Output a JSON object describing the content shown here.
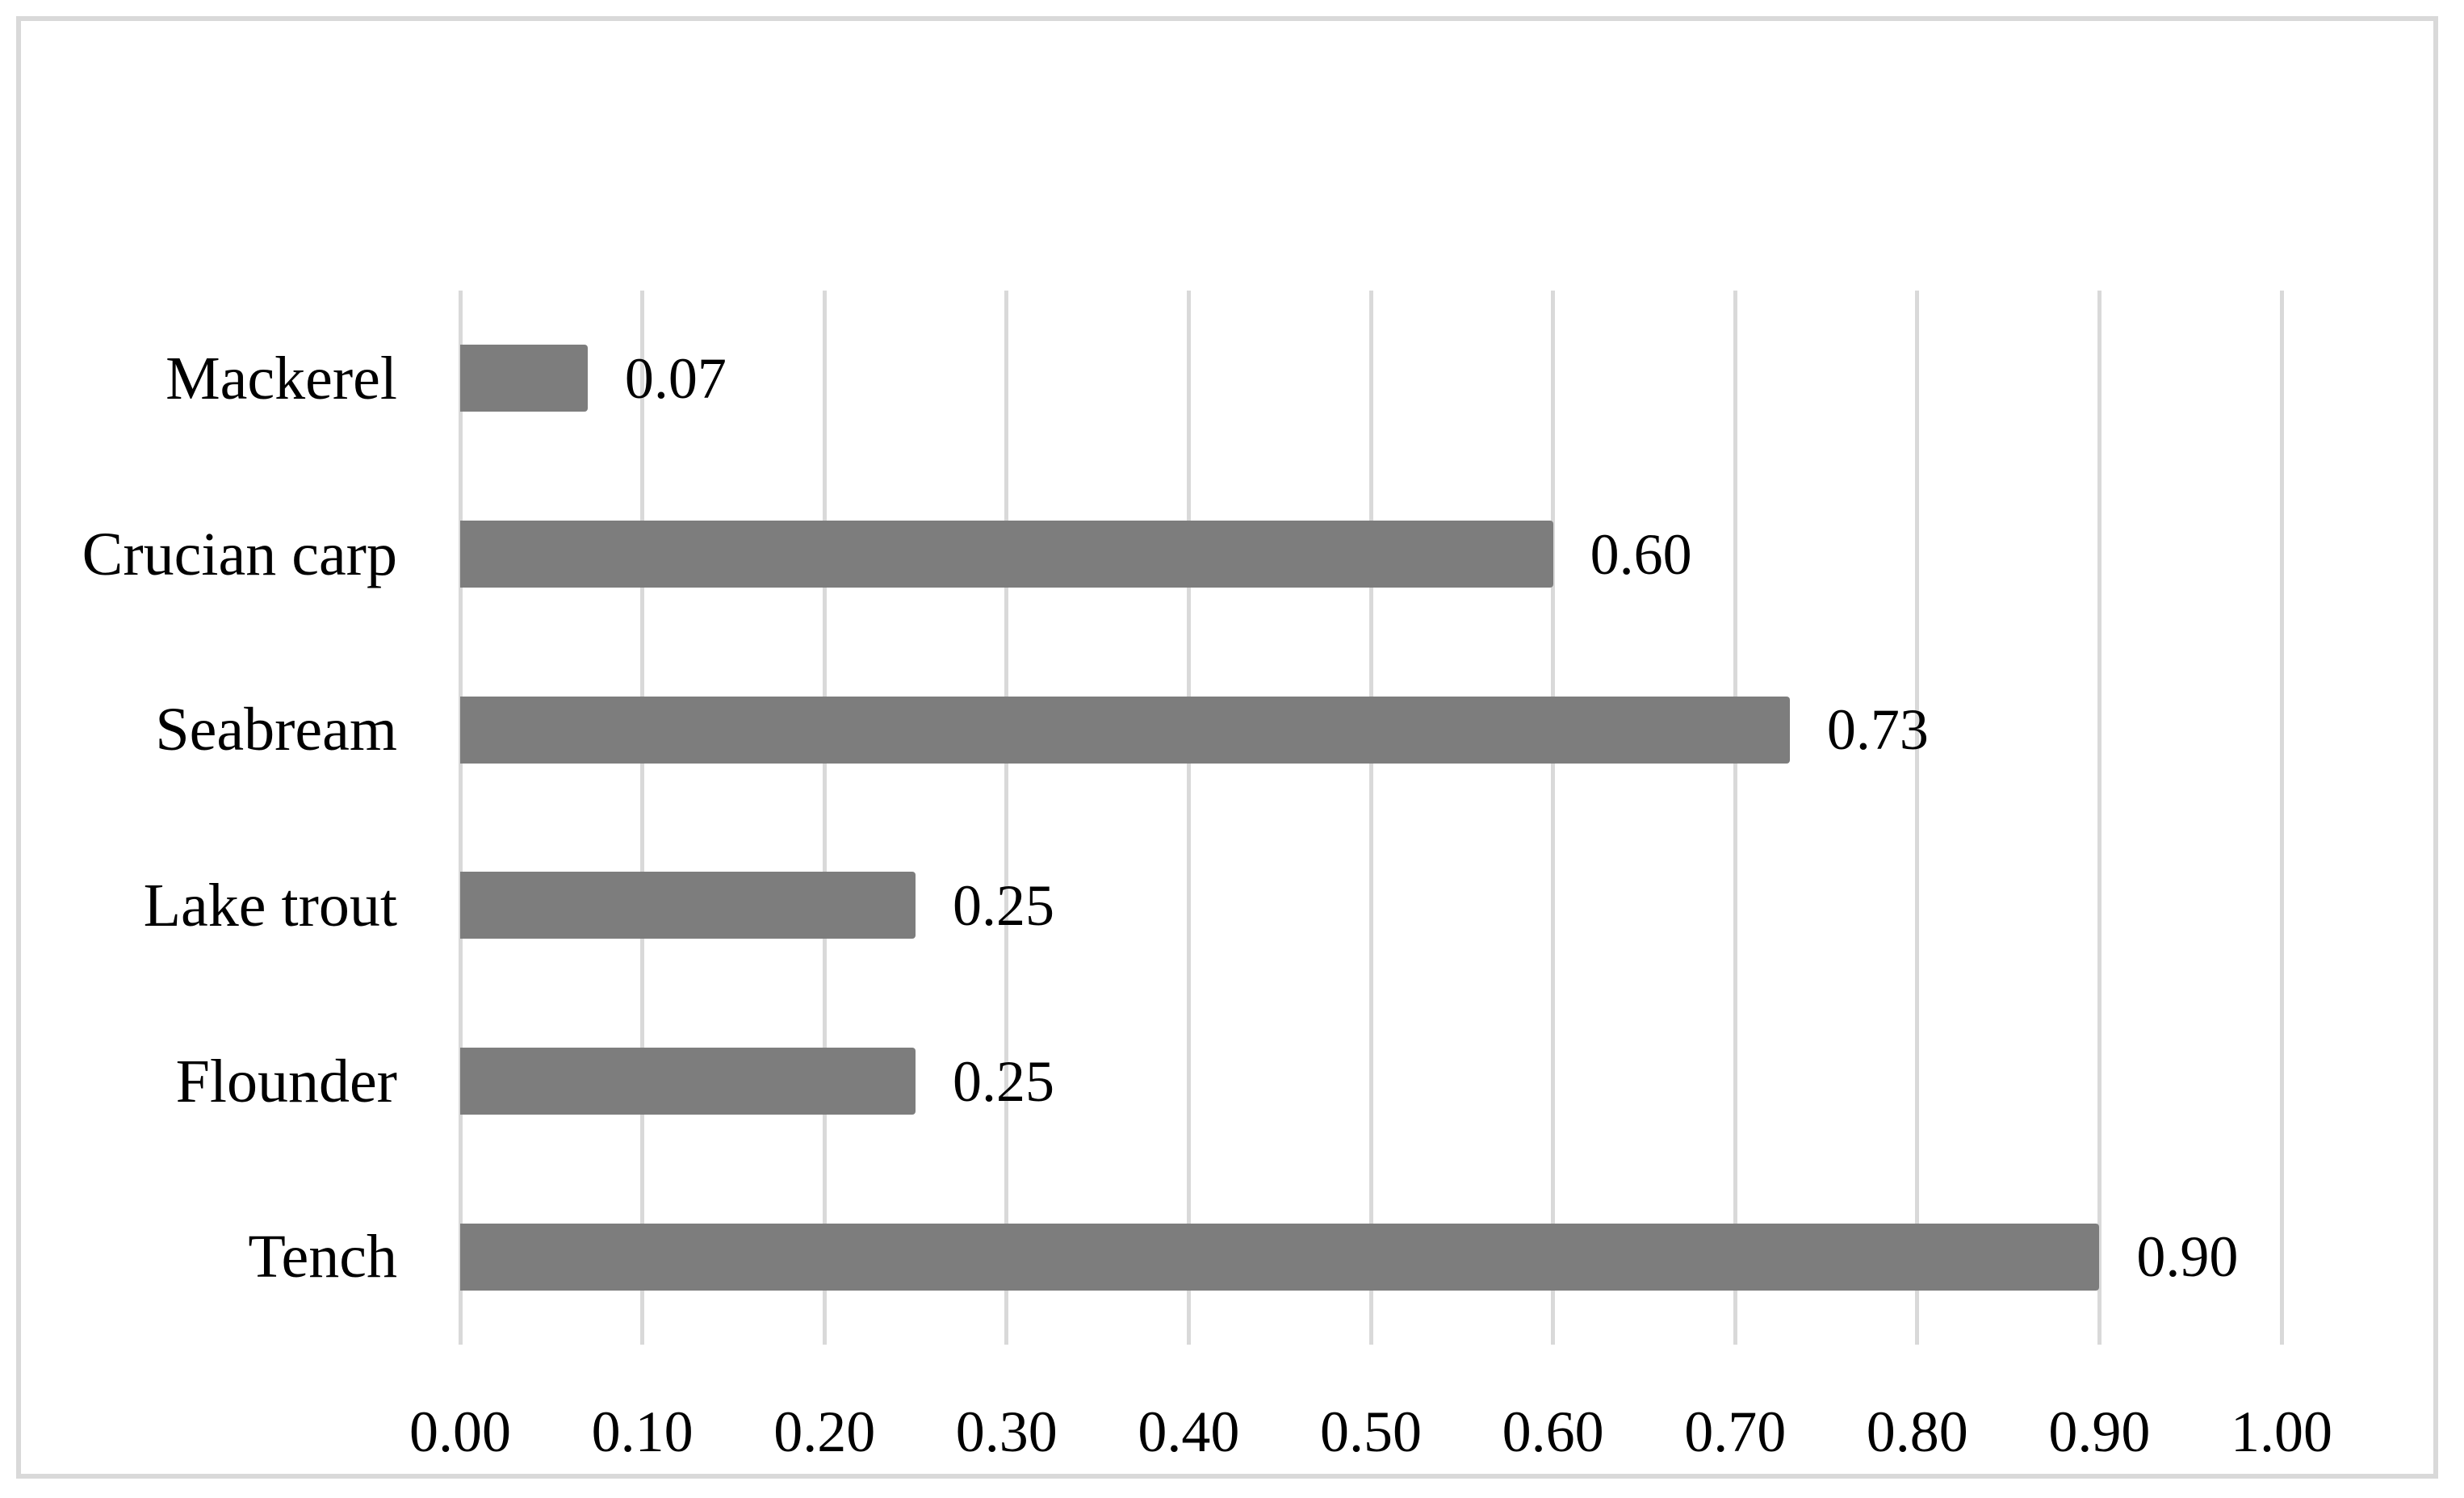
{
  "chart_data": {
    "type": "bar",
    "orientation": "horizontal",
    "title": "",
    "xlabel": "",
    "ylabel": "",
    "categories": [
      "Mackerel",
      "Crucian carp",
      "Seabream",
      "Lake trout",
      "Flounder",
      "Tench"
    ],
    "values": [
      0.07,
      0.6,
      0.73,
      0.25,
      0.25,
      0.9
    ],
    "data_labels": [
      "0.07",
      "0.60",
      "0.73",
      "0.25",
      "0.25",
      "0.90"
    ],
    "x_axis": {
      "min": 0.0,
      "max": 1.0,
      "tick_step": 0.1,
      "tick_labels": [
        "0.00",
        "0.10",
        "0.20",
        "0.30",
        "0.40",
        "0.50",
        "0.60",
        "0.70",
        "0.80",
        "0.90",
        "1.00"
      ]
    },
    "grid": "vertical",
    "legend": "none",
    "colors": {
      "bar": "#7d7d7d",
      "gridline": "#d9d9d9",
      "chart_border": "#d9d9d9",
      "text": "#000000",
      "background": "#ffffff"
    }
  }
}
